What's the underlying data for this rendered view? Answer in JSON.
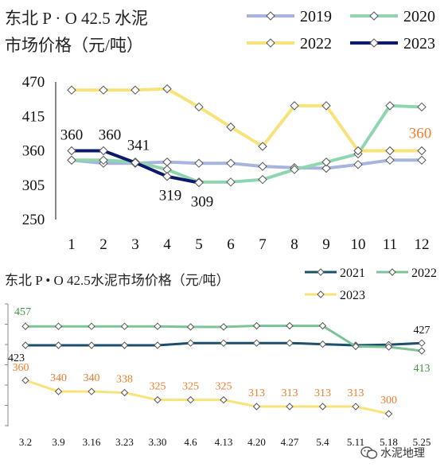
{
  "chart_data": [
    {
      "type": "line",
      "title": "东北 P · O 42.5 水泥\n市场价格（元/吨）",
      "categories": [
        "1",
        "2",
        "3",
        "4",
        "5",
        "6",
        "7",
        "8",
        "9",
        "10",
        "11",
        "12"
      ],
      "yticks": [
        "470",
        "415",
        "360",
        "305",
        "250"
      ],
      "ylim": [
        250,
        470
      ],
      "grid": false,
      "legend_position": "top-right",
      "series": [
        {
          "name": "2019",
          "color": "#a7b4dd",
          "values": [
            345,
            340,
            340,
            342,
            340,
            340,
            335,
            333,
            332,
            338,
            345,
            345
          ]
        },
        {
          "name": "2020",
          "color": "#8fd6b0",
          "values": [
            345,
            345,
            342,
            330,
            310,
            310,
            314,
            330,
            342,
            355,
            432,
            430
          ]
        },
        {
          "name": "2022",
          "color": "#f8e37a",
          "values": [
            457,
            457,
            457,
            459,
            430,
            398,
            367,
            432,
            432,
            360,
            360,
            360
          ]
        },
        {
          "name": "2023",
          "color": "#0b1a6a",
          "values": [
            360,
            360,
            341,
            319,
            309,
            null,
            null,
            null,
            null,
            null,
            null,
            null
          ]
        }
      ],
      "data_labels": [
        {
          "series": "2023",
          "index": 0,
          "text": "360",
          "color": "#111111"
        },
        {
          "series": "2023",
          "index": 1,
          "text": "360",
          "color": "#111111"
        },
        {
          "series": "2023",
          "index": 2,
          "text": "341",
          "color": "#111111"
        },
        {
          "series": "2023",
          "index": 3,
          "text": "319",
          "color": "#111111"
        },
        {
          "series": "2023",
          "index": 4,
          "text": "309",
          "color": "#111111"
        },
        {
          "series": "2022",
          "index": 11,
          "text": "360",
          "color": "#ef7d2b"
        }
      ]
    },
    {
      "type": "line",
      "title": "东北 P • O 42.5水泥市场价格（元/吨）",
      "categories": [
        "3.2",
        "3.9",
        "3.16",
        "3.23",
        "3.30",
        "4.6",
        "4.13",
        "4.20",
        "4.27",
        "5.4",
        "5.11",
        "5.18",
        "5.25"
      ],
      "grid": false,
      "legend_position": "top-right",
      "series": [
        {
          "name": "2021",
          "color": "#1b4f6b",
          "values": [
            423,
            423,
            423,
            423,
            423,
            427,
            427,
            427,
            427,
            425,
            423,
            424,
            427
          ]
        },
        {
          "name": "2022",
          "color": "#7cc397",
          "values": [
            457,
            457,
            457,
            457,
            457,
            456,
            456,
            458,
            458,
            458,
            421,
            420,
            413
          ]
        },
        {
          "name": "2023",
          "color": "#f8e37a",
          "values": [
            360,
            340,
            340,
            338,
            325,
            325,
            325,
            313,
            313,
            313,
            313,
            300,
            null
          ]
        }
      ],
      "data_labels": [
        {
          "series": "2022",
          "index": 0,
          "text": "457",
          "color": "#3e9a3e"
        },
        {
          "series": "2021",
          "index": 0,
          "text": "423",
          "color": "#111111"
        },
        {
          "series": "2021",
          "index": 12,
          "text": "427",
          "color": "#111111"
        },
        {
          "series": "2022",
          "index": 12,
          "text": "413",
          "color": "#3e9a3e"
        },
        {
          "series": "2023",
          "index": 0,
          "text": "360",
          "color": "#ef7d2b"
        },
        {
          "series": "2023",
          "index": 1,
          "text": "340",
          "color": "#ef7d2b"
        },
        {
          "series": "2023",
          "index": 2,
          "text": "340",
          "color": "#ef7d2b"
        },
        {
          "series": "2023",
          "index": 3,
          "text": "338",
          "color": "#ef7d2b"
        },
        {
          "series": "2023",
          "index": 4,
          "text": "325",
          "color": "#ef7d2b"
        },
        {
          "series": "2023",
          "index": 5,
          "text": "325",
          "color": "#ef7d2b"
        },
        {
          "series": "2023",
          "index": 6,
          "text": "325",
          "color": "#ef7d2b"
        },
        {
          "series": "2023",
          "index": 7,
          "text": "313",
          "color": "#ef7d2b"
        },
        {
          "series": "2023",
          "index": 8,
          "text": "313",
          "color": "#ef7d2b"
        },
        {
          "series": "2023",
          "index": 9,
          "text": "313",
          "color": "#ef7d2b"
        },
        {
          "series": "2023",
          "index": 10,
          "text": "313",
          "color": "#ef7d2b"
        },
        {
          "series": "2023",
          "index": 11,
          "text": "300",
          "color": "#ef7d2b"
        }
      ]
    }
  ],
  "watermark": {
    "icon": "wechat-icon",
    "text": "水泥地理"
  }
}
